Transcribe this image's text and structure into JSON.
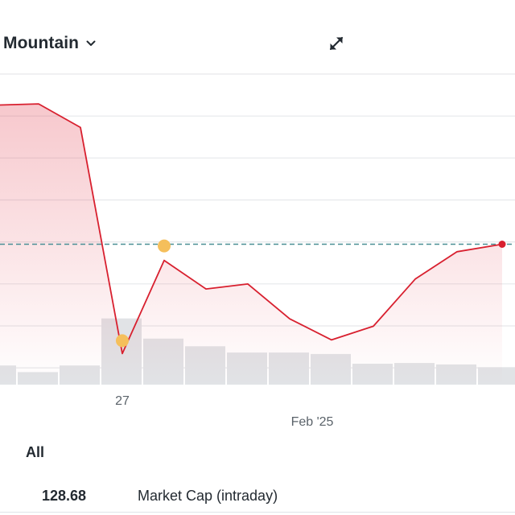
{
  "header": {
    "timezone_label": "Mountain",
    "timezone_icon": "chevron-down-icon",
    "expand_icon": "expand-icon"
  },
  "chart_data": {
    "type": "line",
    "x_tick_labels": [
      "27",
      "Feb '25"
    ],
    "price_series": [
      98.0,
      98.1,
      96.2,
      78.0,
      85.5,
      83.2,
      83.6,
      80.8,
      79.1,
      80.2,
      84.0,
      86.2,
      86.8
    ],
    "reference_line": 86.8,
    "ylim": [
      75.5,
      100.5
    ],
    "volume": [
      0.55,
      0.36,
      0.55,
      1.9,
      1.32,
      1.1,
      0.92,
      0.92,
      0.88,
      0.6,
      0.62,
      0.58,
      0.5
    ],
    "volume_max": 3.0,
    "markers": [
      {
        "kind": "event",
        "index": 3
      },
      {
        "kind": "event",
        "index": 4
      }
    ],
    "colors": {
      "line": "#d8202f",
      "reference": "#4a8f95",
      "marker": "#f5bf5b",
      "volume": "#e1e3e6",
      "grid": "#e6e8eb"
    }
  },
  "tabs": {
    "all_label": "All"
  },
  "stats": {
    "value": "128.68",
    "label": "Market Cap (intraday)"
  }
}
